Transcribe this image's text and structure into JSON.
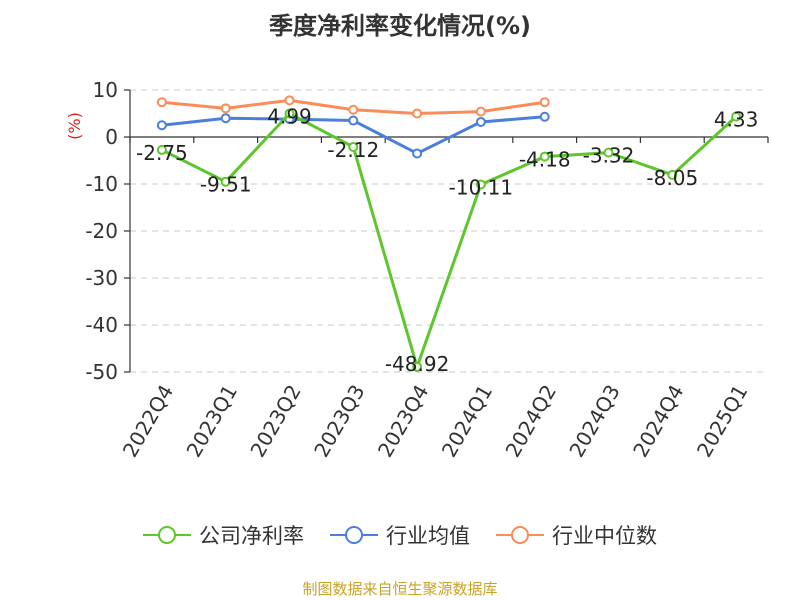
{
  "title": "季度净利率变化情况(%)",
  "source_note": "制图数据来自恒生聚源数据库",
  "chart_data": {
    "type": "line",
    "categories": [
      "2022Q4",
      "2023Q1",
      "2023Q2",
      "2023Q3",
      "2023Q4",
      "2024Q1",
      "2024Q2",
      "2024Q3",
      "2024Q4",
      "2025Q1"
    ],
    "ylabel": "(%)",
    "ylim": [
      -50,
      10
    ],
    "yticks": [
      10,
      0,
      -10,
      -20,
      -30,
      -40,
      -50
    ],
    "grid": true,
    "legend_position": "bottom",
    "series": [
      {
        "name": "公司净利率",
        "color": "#5cc62b",
        "values": [
          -2.75,
          -9.51,
          4.99,
          -2.12,
          -48.92,
          -10.11,
          -4.18,
          -3.32,
          -8.05,
          4.33
        ],
        "labels": [
          "-2.75",
          "-9.51",
          "4.99",
          "-2.12",
          "-48.92",
          "-10.11",
          "-4.18",
          "-3.32",
          "-8.05",
          "4.33"
        ]
      },
      {
        "name": "行业均值",
        "color": "#4a7fdb",
        "values": [
          2.5,
          4.0,
          3.8,
          3.5,
          -3.5,
          3.2,
          4.3,
          null,
          null,
          null
        ]
      },
      {
        "name": "行业中位数",
        "color": "#f98c57",
        "values": [
          7.4,
          6.1,
          7.8,
          5.8,
          5.0,
          5.4,
          7.4,
          null,
          null,
          null
        ]
      }
    ]
  }
}
